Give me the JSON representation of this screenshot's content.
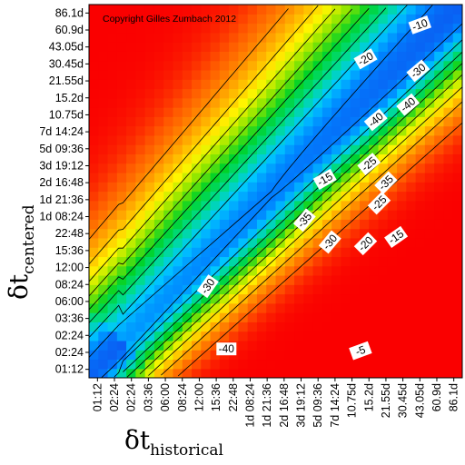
{
  "chart_data": {
    "type": "heatmap",
    "copyright": "Copyright Gilles Zumbach 2012",
    "xlabel": {
      "symbol": "δt",
      "subscript": "historical"
    },
    "ylabel": {
      "symbol": "δt",
      "subscript": "centered"
    },
    "x_ticks": [
      "01:12",
      "02:24",
      "02:24",
      "03:36",
      "06:00",
      "08:24",
      "12:00",
      "15:36",
      "22:48",
      "1d 08:24",
      "1d 21:36",
      "2d 16:48",
      "3d 19:12",
      "5d 09:36",
      "7d 14:24",
      "10.75d",
      "15.2d",
      "21.55d",
      "30.45d",
      "43.05d",
      "60.9d",
      "86.1d"
    ],
    "y_ticks": [
      "86.1d",
      "60.9d",
      "43.05d",
      "30.45d",
      "21.55d",
      "15.2d",
      "10.75d",
      "7d 14:24",
      "5d 09:36",
      "3d 19:12",
      "2d 16:48",
      "1d 21:36",
      "1d 08:24",
      "22:48",
      "15:36",
      "12:00",
      "08:24",
      "06:00",
      "03:36",
      "02:24",
      "02:24",
      "01:12"
    ],
    "contour_levels": [
      -40,
      -35,
      -30,
      -25,
      -20,
      -15,
      -10,
      -5
    ],
    "contour_labels": [
      {
        "text": "-10",
        "pos": [
          19.0,
          20.3
        ],
        "angle": 20
      },
      {
        "text": "-20",
        "pos": [
          15.8,
          18.3
        ],
        "angle": 30
      },
      {
        "text": "-30",
        "pos": [
          18.9,
          17.6
        ],
        "angle": 40
      },
      {
        "text": "-40",
        "pos": [
          18.3,
          15.6
        ],
        "angle": 40
      },
      {
        "text": "-40",
        "pos": [
          16.4,
          14.7
        ],
        "angle": 40
      },
      {
        "text": "-15",
        "pos": [
          13.4,
          11.2
        ],
        "angle": 30
      },
      {
        "text": "-25",
        "pos": [
          16.0,
          12.1
        ],
        "angle": 40
      },
      {
        "text": "-10",
        "pos": [
          22.8,
          11.6
        ],
        "angle": 40
      },
      {
        "text": "-35",
        "pos": [
          17.0,
          11.0
        ],
        "angle": 45
      },
      {
        "text": "-25",
        "pos": [
          16.6,
          9.8
        ],
        "angle": 45
      },
      {
        "text": "-35",
        "pos": [
          12.2,
          8.8
        ],
        "angle": 50
      },
      {
        "text": "-15",
        "pos": [
          17.6,
          7.8
        ],
        "angle": 35
      },
      {
        "text": "-30",
        "pos": [
          13.7,
          7.5
        ],
        "angle": 50
      },
      {
        "text": "-20",
        "pos": [
          15.8,
          7.4
        ],
        "angle": 45
      },
      {
        "text": "-30",
        "pos": [
          6.5,
          4.9
        ],
        "angle": 55
      },
      {
        "text": "-40",
        "pos": [
          7.6,
          1.2
        ],
        "angle": 0
      },
      {
        "text": "-5",
        "pos": [
          15.5,
          1.1
        ],
        "angle": 20
      }
    ],
    "grid": false,
    "legend": "none"
  }
}
